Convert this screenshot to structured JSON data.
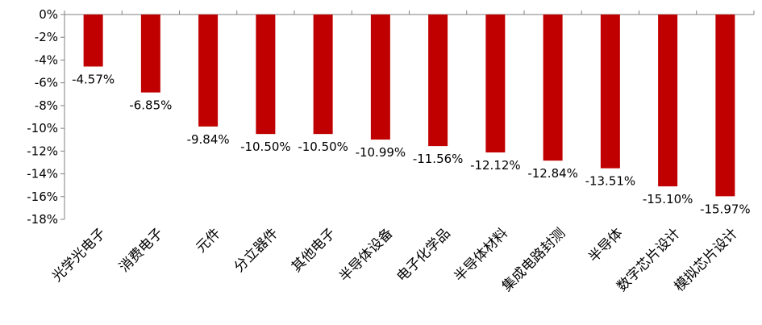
{
  "chart_data": {
    "type": "bar",
    "title": "",
    "xlabel": "",
    "ylabel": "",
    "ylim": [
      -18,
      0
    ],
    "yticks": [
      0,
      -2,
      -4,
      -6,
      -8,
      -10,
      -12,
      -14,
      -16,
      -18
    ],
    "ytick_labels": [
      "0%",
      "-2%",
      "-4%",
      "-6%",
      "-8%",
      "-10%",
      "-12%",
      "-14%",
      "-16%",
      "-18%"
    ],
    "grid": false,
    "legend": "none",
    "bar_color": "#C00000",
    "categories": [
      "光学光电子",
      "消费电子",
      "元件",
      "分立器件",
      "其他电子",
      "半导体设备",
      "电子化学品",
      "半导体材料",
      "集成电路封测",
      "半导体",
      "数字芯片设计",
      "模拟芯片设计"
    ],
    "values": [
      -4.57,
      -6.85,
      -9.84,
      -10.5,
      -10.5,
      -10.99,
      -11.56,
      -12.12,
      -12.84,
      -13.51,
      -15.1,
      -15.97
    ],
    "value_labels": [
      "-4.57%",
      "-6.85%",
      "-9.84%",
      "-10.50%",
      "-10.50%",
      "-10.99%",
      "-11.56%",
      "-12.12%",
      "-12.84%",
      "-13.51%",
      "-15.10%",
      "-15.97%"
    ]
  }
}
